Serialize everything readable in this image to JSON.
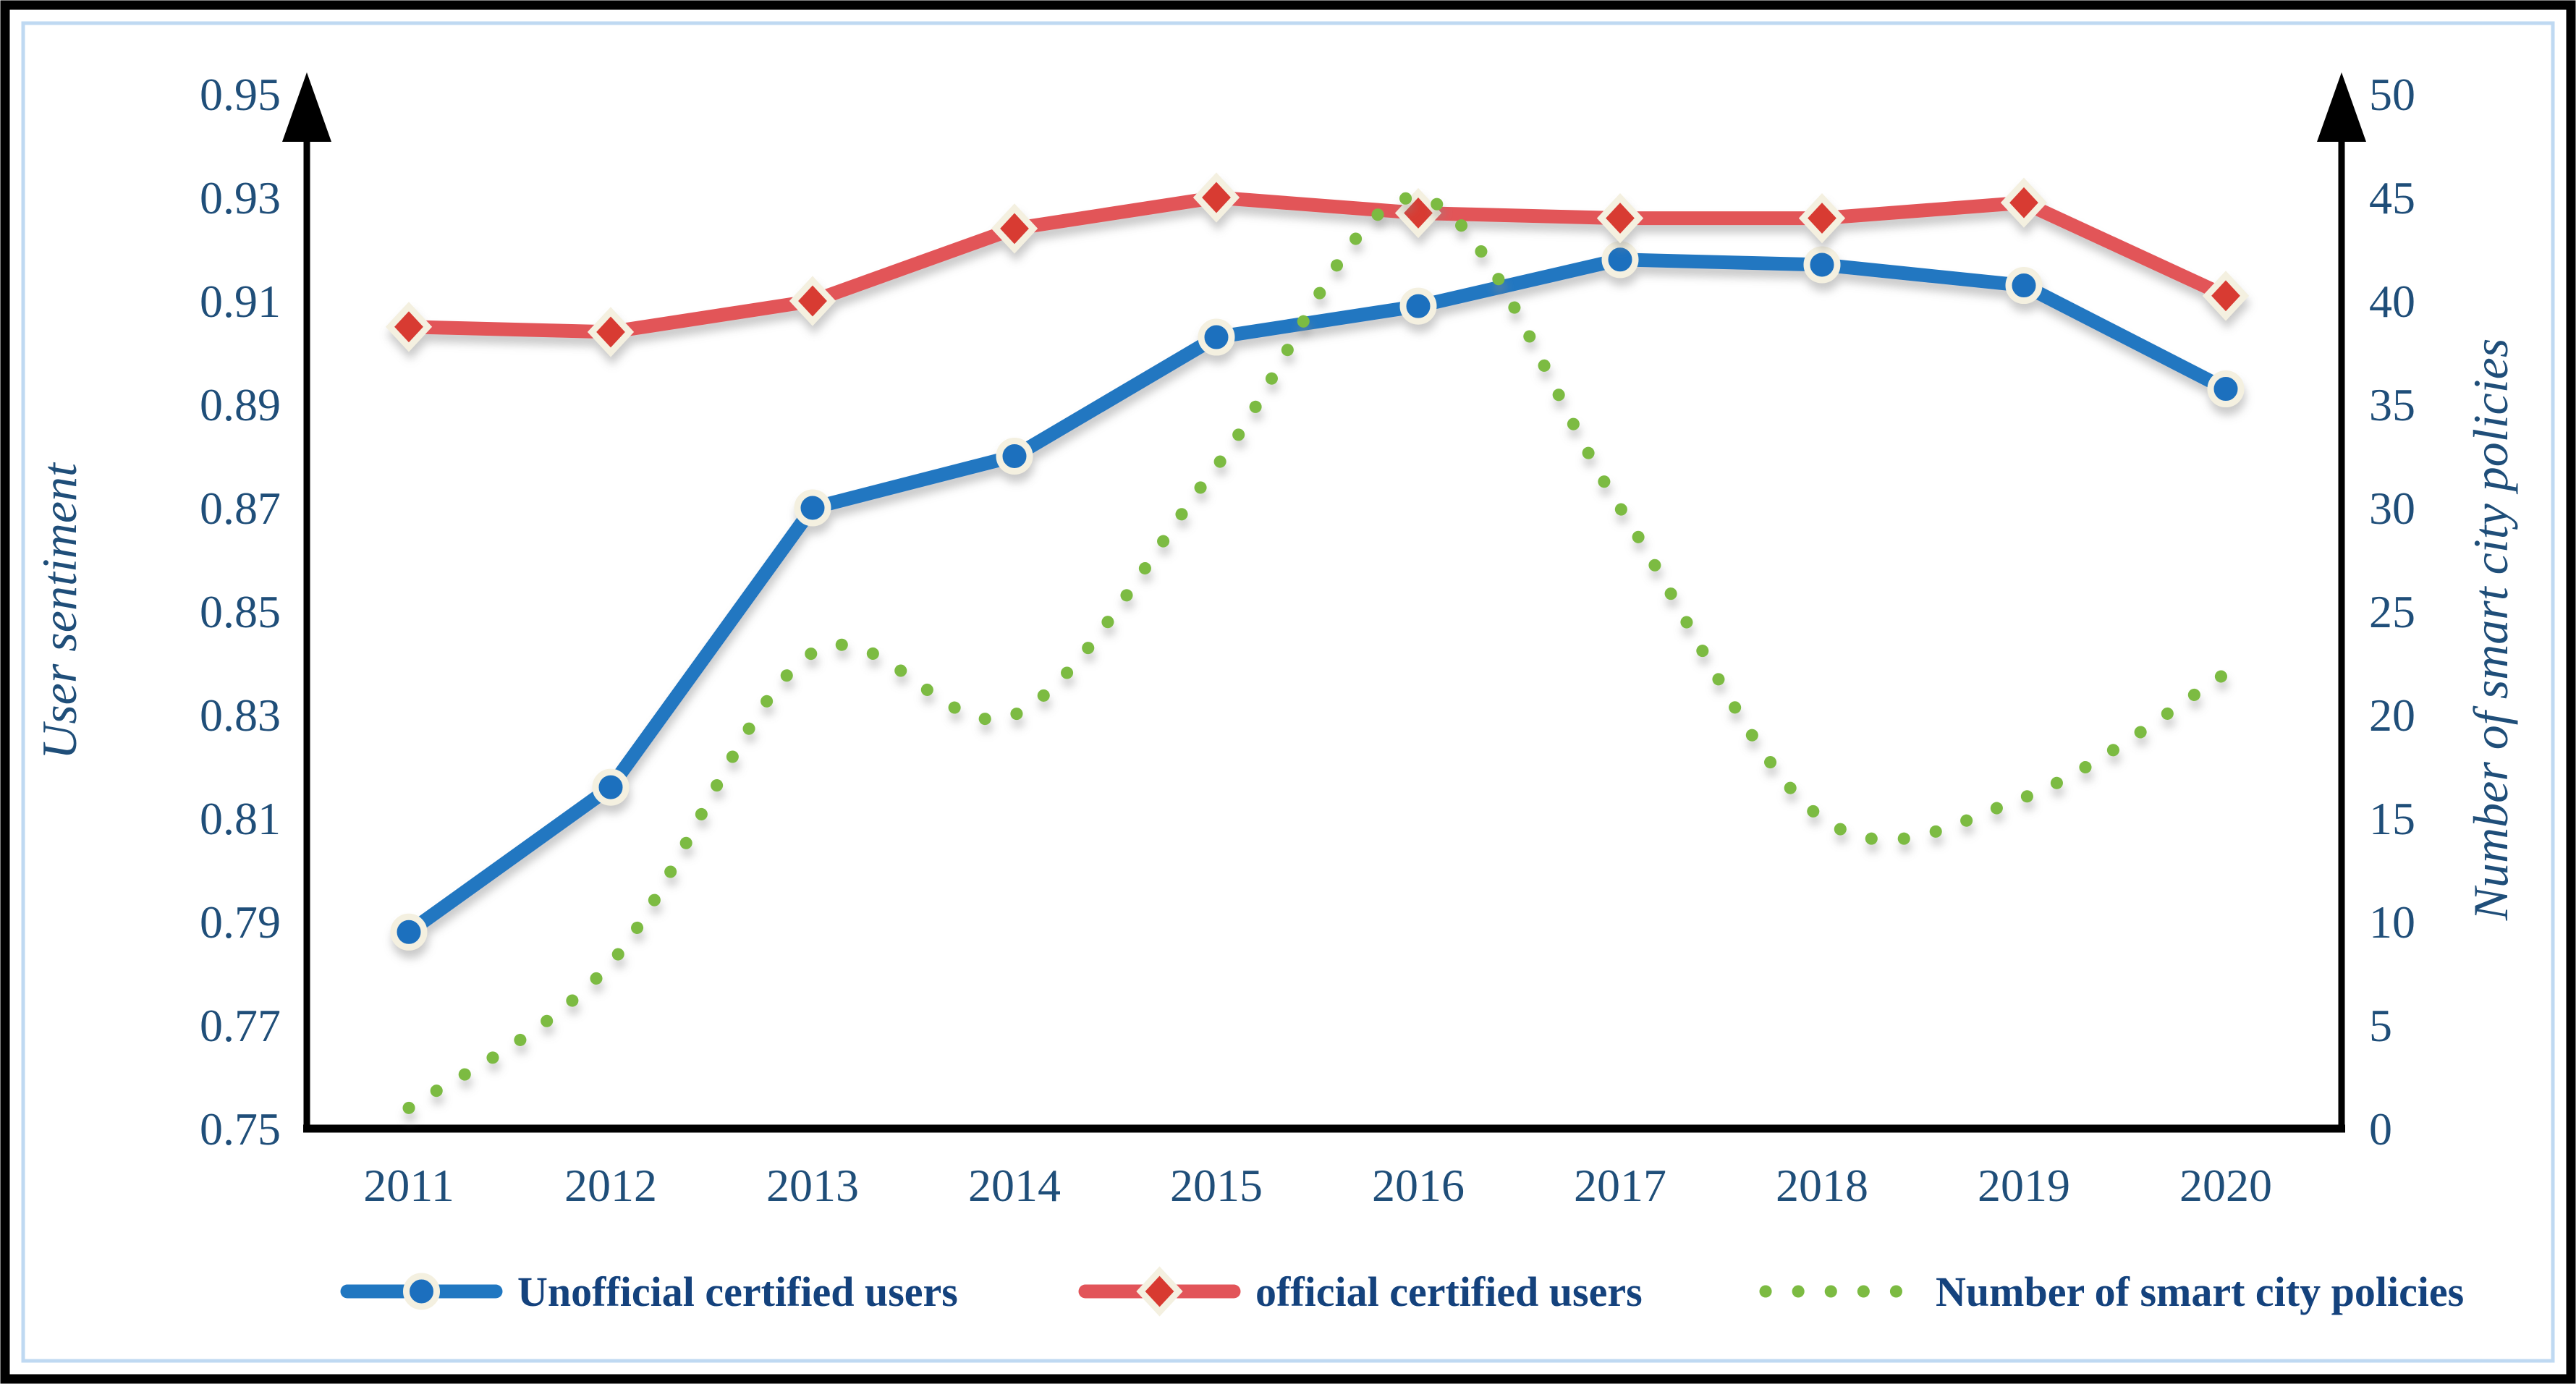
{
  "figure": {
    "background_color": "#ffffff",
    "outer_border_color": "#000000",
    "inner_border_color": "#BFD9F2"
  },
  "chart_data": {
    "type": "line",
    "title": "",
    "categories": [
      "2011",
      "2012",
      "2013",
      "2014",
      "2015",
      "2016",
      "2017",
      "2018",
      "2019",
      "2020"
    ],
    "series": [
      {
        "name": "Unofficial certified users",
        "axis": "left",
        "style": "solid",
        "marker": "circle",
        "color": "#2077C1",
        "marker_color": "#1C6FBE",
        "values": [
          0.788,
          0.816,
          0.87,
          0.88,
          0.903,
          0.909,
          0.918,
          0.917,
          0.913,
          0.893
        ]
      },
      {
        "name": "official certified users",
        "axis": "left",
        "style": "solid",
        "marker": "diamond",
        "color": "#E25459",
        "marker_color": "#D83A30",
        "values": [
          0.905,
          0.904,
          0.91,
          0.924,
          0.93,
          0.927,
          0.926,
          0.926,
          0.929,
          0.911
        ]
      },
      {
        "name": "Number of smart city policies",
        "axis": "right",
        "style": "dotted",
        "marker": "none",
        "color": "#7CBB42",
        "marker_color": "#7CBB42",
        "values": [
          1,
          8,
          23,
          20,
          32,
          45,
          30,
          15,
          16,
          22
        ]
      }
    ],
    "left_axis": {
      "title": "User sentiment",
      "min": 0.75,
      "max": 0.95,
      "step": 0.02,
      "tick_labels": [
        "0.75",
        "0.77",
        "0.79",
        "0.81",
        "0.83",
        "0.85",
        "0.87",
        "0.89",
        "0.91",
        "0.93",
        "0.95"
      ],
      "text_color": "#1F4E79"
    },
    "right_axis": {
      "title": "Number of smart city policies",
      "min": 0,
      "max": 50,
      "step": 5,
      "tick_labels": [
        "0",
        "5",
        "10",
        "15",
        "20",
        "25",
        "30",
        "35",
        "40",
        "45",
        "50"
      ],
      "text_color": "#1F4E79"
    },
    "x_axis": {
      "labels": [
        "2011",
        "2012",
        "2013",
        "2014",
        "2015",
        "2016",
        "2017",
        "2018",
        "2019",
        "2020"
      ]
    },
    "legend_position": "bottom",
    "grid": false,
    "marker_halo_color": "#F4F0E0",
    "axis_line_color": "#000000"
  }
}
